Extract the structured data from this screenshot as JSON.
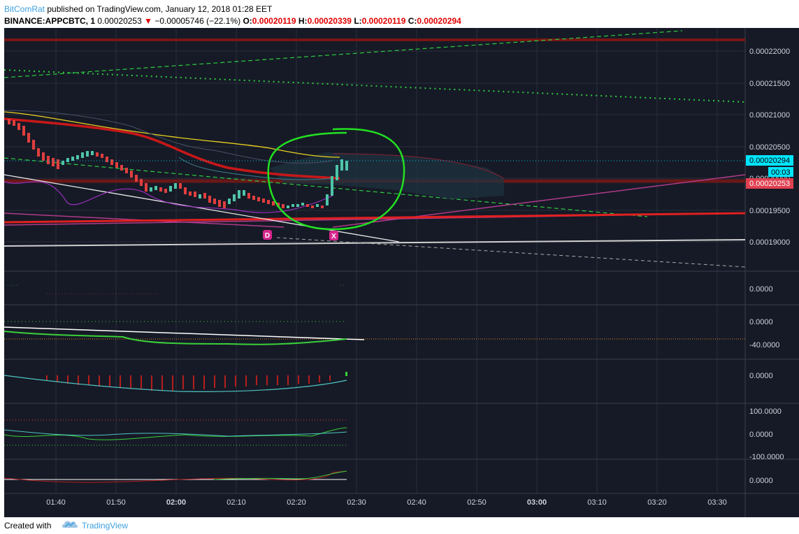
{
  "header": {
    "author": "BitComRat",
    "published_text": "published on TradingView.com, January 12, 2018 01:28 EET",
    "symbol": "BINANCE:APPCBTC, 1",
    "last": "0.00020253",
    "change": "−0.00005746 (−22.1%)",
    "o_label": "O:",
    "o_value": "0.00020119",
    "h_label": "H:",
    "h_value": "0.00020339",
    "l_label": "L:",
    "l_value": "0.00020119",
    "c_label": "C:",
    "c_value": "0.00020294"
  },
  "price_axis": {
    "ticks": [
      "0.00022000",
      "0.00021500",
      "0.00021000",
      "0.00020500",
      "0.00020000",
      "0.00019500",
      "0.00019000"
    ],
    "current_price_label": "0.00020294",
    "countdown_label": "00:03",
    "last_price_label": "0.00020253"
  },
  "indicator_axes": {
    "pane1": [
      "0.0000"
    ],
    "pane2": [
      "0.0000",
      "-40.0000"
    ],
    "pane3": [
      "0.0000"
    ],
    "pane4": [
      "100.0000",
      "0.0000",
      "-100.0000"
    ],
    "pane5": [
      "0.0000"
    ]
  },
  "time_axis": [
    "01:40",
    "01:50",
    "02:00",
    "02:10",
    "02:20",
    "02:30",
    "02:40",
    "02:50",
    "03:00",
    "03:10",
    "03:20",
    "03:30"
  ],
  "markers": [
    {
      "label": "D"
    },
    {
      "label": "X"
    }
  ],
  "colors": {
    "background": "#161a26",
    "grid": "#2a2e39",
    "up": "#4fc4a8",
    "down": "#e03e3e",
    "annotation_green": "#22e022",
    "marker_magenta": "#d6268d",
    "current_label_bg": "#00e5ff",
    "last_label_bg": "#e04050"
  },
  "footer": {
    "created_with": "Created with",
    "brand": "TradingView",
    "logo_icon": "tradingview-cloud-icon"
  }
}
